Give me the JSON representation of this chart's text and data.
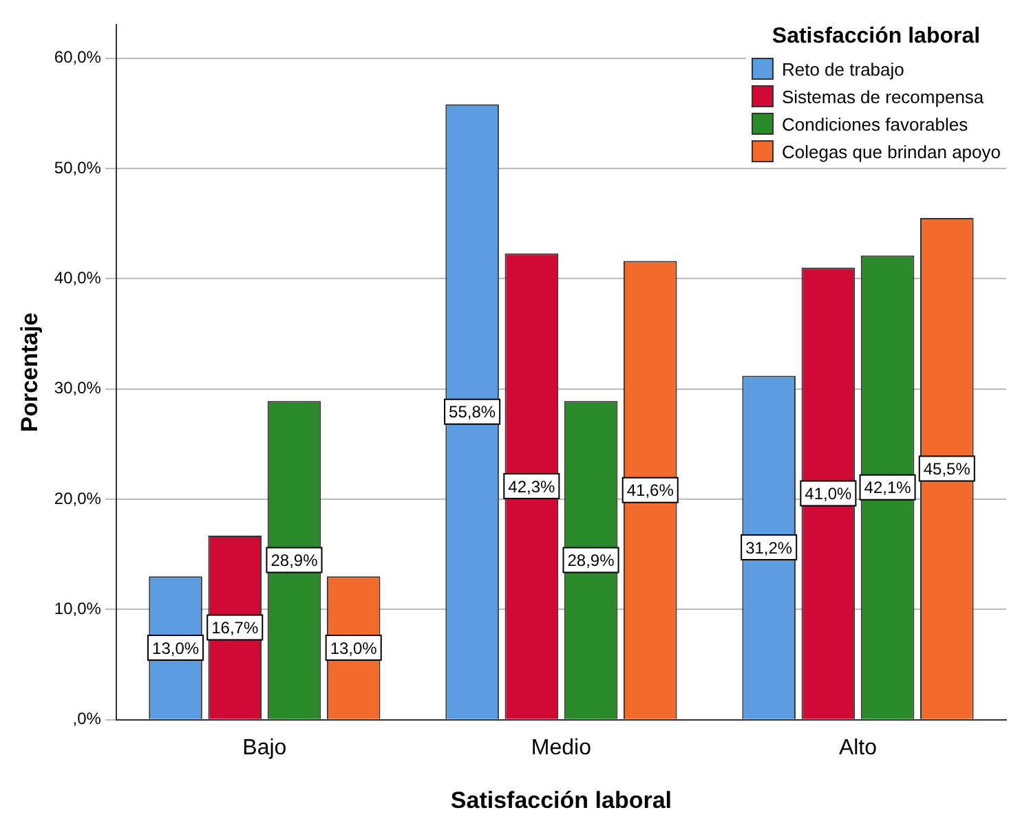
{
  "chart_data": {
    "type": "bar",
    "xlabel": "Satisfacción laboral",
    "ylabel": "Porcentaje",
    "legend_title": "Satisfacción laboral",
    "legend": "top right",
    "grid": "y",
    "categories": [
      "Bajo",
      "Medio",
      "Alto"
    ],
    "ylim": [
      0,
      63
    ],
    "yticks": [
      {
        "value": 0,
        "label": ",0%"
      },
      {
        "value": 10,
        "label": "10,0%"
      },
      {
        "value": 20,
        "label": "20,0%"
      },
      {
        "value": 30,
        "label": "30,0%"
      },
      {
        "value": 40,
        "label": "40,0%"
      },
      {
        "value": 50,
        "label": "50,0%"
      },
      {
        "value": 60,
        "label": "60,0%"
      }
    ],
    "series": [
      {
        "name": "Reto de trabajo",
        "color": "#5b9be0",
        "values": [
          13.0,
          55.8,
          31.2
        ],
        "value_labels": [
          "13,0%",
          "55,8%",
          "31,2%"
        ]
      },
      {
        "name": "Sistemas de recompensa",
        "color": "#d00a34",
        "values": [
          16.7,
          42.3,
          41.0
        ],
        "value_labels": [
          "16,7%",
          "42,3%",
          "41,0%"
        ]
      },
      {
        "name": "Condiciones favorables",
        "color": "#2a8a2a",
        "values": [
          28.9,
          28.9,
          42.1
        ],
        "value_labels": [
          "28,9%",
          "28,9%",
          "42,1%"
        ]
      },
      {
        "name": "Colegas que brindan apoyo",
        "color": "#f26b2c",
        "values": [
          13.0,
          41.6,
          45.5
        ],
        "value_labels": [
          "13,0%",
          "41,6%",
          "45,5%"
        ]
      }
    ]
  }
}
